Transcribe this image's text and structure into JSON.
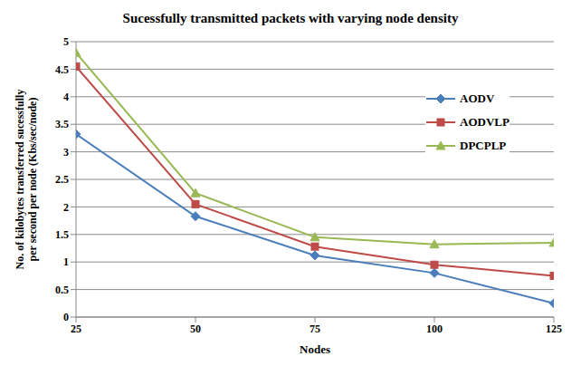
{
  "chart_data": {
    "type": "line",
    "title": "Sucessfully transmitted packets with varying node density",
    "x_label": "Nodes",
    "y_label": "No. of kilobytes transferred sucessfully per second per node (Kbs/sec/node)",
    "x": [
      25,
      50,
      75,
      100,
      125
    ],
    "xlim": [
      25,
      125
    ],
    "xticks": [
      25,
      50,
      75,
      100,
      125
    ],
    "ylim": [
      0,
      5
    ],
    "yticks": [
      0,
      0.5,
      1,
      1.5,
      2,
      2.5,
      3,
      3.5,
      4,
      4.5,
      5
    ],
    "grid": true,
    "legend": "right",
    "series": [
      {
        "name": "AODV",
        "color": "#4a7ebb",
        "marker": "diamond",
        "values": [
          3.32,
          1.83,
          1.12,
          0.8,
          0.25
        ]
      },
      {
        "name": "AODVLP",
        "color": "#be4b48",
        "marker": "square",
        "values": [
          4.55,
          2.05,
          1.28,
          0.95,
          0.75
        ]
      },
      {
        "name": "DPCPLP",
        "color": "#98b954",
        "marker": "triangle",
        "values": [
          4.8,
          2.25,
          1.45,
          1.32,
          1.35
        ]
      }
    ]
  }
}
